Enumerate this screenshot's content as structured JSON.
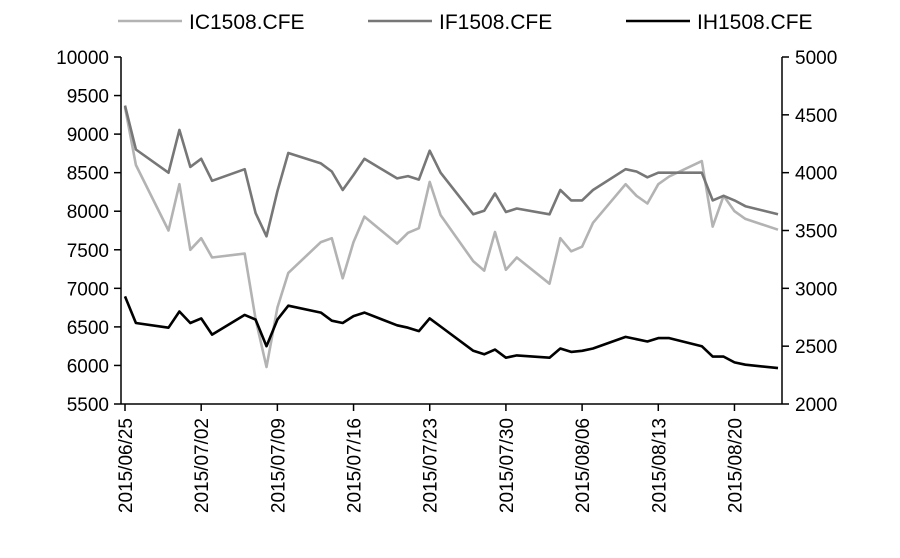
{
  "chart_data": {
    "type": "line",
    "title": "",
    "xlabel": "",
    "ylabel_left": "",
    "ylabel_right": "",
    "legend_position": "top",
    "grid": false,
    "x_dates": [
      "2015/06/25",
      "2015/06/26",
      "2015/06/29",
      "2015/06/30",
      "2015/07/01",
      "2015/07/02",
      "2015/07/03",
      "2015/07/06",
      "2015/07/07",
      "2015/07/08",
      "2015/07/09",
      "2015/07/10",
      "2015/07/13",
      "2015/07/14",
      "2015/07/15",
      "2015/07/16",
      "2015/07/17",
      "2015/07/20",
      "2015/07/21",
      "2015/07/22",
      "2015/07/23",
      "2015/07/24",
      "2015/07/27",
      "2015/07/28",
      "2015/07/29",
      "2015/07/30",
      "2015/07/31",
      "2015/08/03",
      "2015/08/04",
      "2015/08/05",
      "2015/08/06",
      "2015/08/07",
      "2015/08/10",
      "2015/08/11",
      "2015/08/12",
      "2015/08/13",
      "2015/08/14",
      "2015/08/17",
      "2015/08/18",
      "2015/08/19",
      "2015/08/20",
      "2015/08/21",
      "2015/08/24"
    ],
    "x_ticks": [
      "2015/06/25",
      "2015/07/02",
      "2015/07/09",
      "2015/07/16",
      "2015/07/23",
      "2015/07/30",
      "2015/08/06",
      "2015/08/13",
      "2015/08/20"
    ],
    "left_axis": {
      "ylim": [
        5500,
        10000
      ],
      "ticks": [
        "5500",
        "6000",
        "6500",
        "7000",
        "7500",
        "8000",
        "8500",
        "9000",
        "9500",
        "10000"
      ]
    },
    "right_axis": {
      "ylim": [
        2000,
        5000
      ],
      "ticks": [
        "2000",
        "2500",
        "3000",
        "3500",
        "4000",
        "4500",
        "5000"
      ]
    },
    "series": [
      {
        "name": "IC1508.CFE",
        "axis": "left",
        "color": "#b3b3b3",
        "points": [
          [
            "2015/06/25",
            9350
          ],
          [
            "2015/06/26",
            8600
          ],
          [
            "2015/06/29",
            7750
          ],
          [
            "2015/06/30",
            8350
          ],
          [
            "2015/07/01",
            7500
          ],
          [
            "2015/07/02",
            7650
          ],
          [
            "2015/07/03",
            7400
          ],
          [
            "2015/07/06",
            7450
          ],
          [
            "2015/07/07",
            6600
          ],
          [
            "2015/07/08",
            5980
          ],
          [
            "2015/07/09",
            6750
          ],
          [
            "2015/07/10",
            7200
          ],
          [
            "2015/07/13",
            7600
          ],
          [
            "2015/07/14",
            7650
          ],
          [
            "2015/07/15",
            7130
          ],
          [
            "2015/07/16",
            7600
          ],
          [
            "2015/07/17",
            7930
          ],
          [
            "2015/07/20",
            7580
          ],
          [
            "2015/07/21",
            7720
          ],
          [
            "2015/07/22",
            7780
          ],
          [
            "2015/07/23",
            8380
          ],
          [
            "2015/07/24",
            7950
          ],
          [
            "2015/07/27",
            7350
          ],
          [
            "2015/07/28",
            7230
          ],
          [
            "2015/07/29",
            7730
          ],
          [
            "2015/07/30",
            7240
          ],
          [
            "2015/07/31",
            7400
          ],
          [
            "2015/08/03",
            7060
          ],
          [
            "2015/08/04",
            7650
          ],
          [
            "2015/08/05",
            7480
          ],
          [
            "2015/08/06",
            7540
          ],
          [
            "2015/08/07",
            7850
          ],
          [
            "2015/08/10",
            8350
          ],
          [
            "2015/08/11",
            8200
          ],
          [
            "2015/08/12",
            8100
          ],
          [
            "2015/08/13",
            8350
          ],
          [
            "2015/08/14",
            8450
          ],
          [
            "2015/08/17",
            8650
          ],
          [
            "2015/08/18",
            7800
          ],
          [
            "2015/08/19",
            8200
          ],
          [
            "2015/08/20",
            8000
          ],
          [
            "2015/08/21",
            7900
          ],
          [
            "2015/08/24",
            7760
          ]
        ]
      },
      {
        "name": "IF1508.CFE",
        "axis": "right",
        "color": "#777777",
        "points": [
          [
            "2015/06/25",
            4580
          ],
          [
            "2015/06/26",
            4200
          ],
          [
            "2015/06/29",
            4000
          ],
          [
            "2015/06/30",
            4370
          ],
          [
            "2015/07/01",
            4050
          ],
          [
            "2015/07/02",
            4120
          ],
          [
            "2015/07/03",
            3930
          ],
          [
            "2015/07/06",
            4030
          ],
          [
            "2015/07/07",
            3650
          ],
          [
            "2015/07/08",
            3450
          ],
          [
            "2015/07/09",
            3840
          ],
          [
            "2015/07/10",
            4170
          ],
          [
            "2015/07/13",
            4080
          ],
          [
            "2015/07/14",
            4010
          ],
          [
            "2015/07/15",
            3850
          ],
          [
            "2015/07/16",
            3980
          ],
          [
            "2015/07/17",
            4120
          ],
          [
            "2015/07/20",
            3950
          ],
          [
            "2015/07/21",
            3970
          ],
          [
            "2015/07/22",
            3940
          ],
          [
            "2015/07/23",
            4190
          ],
          [
            "2015/07/24",
            4000
          ],
          [
            "2015/07/27",
            3640
          ],
          [
            "2015/07/28",
            3670
          ],
          [
            "2015/07/29",
            3820
          ],
          [
            "2015/07/30",
            3660
          ],
          [
            "2015/07/31",
            3690
          ],
          [
            "2015/08/03",
            3640
          ],
          [
            "2015/08/04",
            3850
          ],
          [
            "2015/08/05",
            3760
          ],
          [
            "2015/08/06",
            3760
          ],
          [
            "2015/08/07",
            3850
          ],
          [
            "2015/08/10",
            4030
          ],
          [
            "2015/08/11",
            4010
          ],
          [
            "2015/08/12",
            3960
          ],
          [
            "2015/08/13",
            4000
          ],
          [
            "2015/08/14",
            4000
          ],
          [
            "2015/08/17",
            4000
          ],
          [
            "2015/08/18",
            3760
          ],
          [
            "2015/08/19",
            3800
          ],
          [
            "2015/08/20",
            3760
          ],
          [
            "2015/08/21",
            3710
          ],
          [
            "2015/08/24",
            3640
          ]
        ]
      },
      {
        "name": "IH1508.CFE",
        "axis": "right",
        "color": "#000000",
        "points": [
          [
            "2015/06/25",
            2930
          ],
          [
            "2015/06/26",
            2700
          ],
          [
            "2015/06/29",
            2660
          ],
          [
            "2015/06/30",
            2800
          ],
          [
            "2015/07/01",
            2700
          ],
          [
            "2015/07/02",
            2740
          ],
          [
            "2015/07/03",
            2600
          ],
          [
            "2015/07/06",
            2770
          ],
          [
            "2015/07/07",
            2730
          ],
          [
            "2015/07/08",
            2500
          ],
          [
            "2015/07/09",
            2730
          ],
          [
            "2015/07/10",
            2850
          ],
          [
            "2015/07/13",
            2790
          ],
          [
            "2015/07/14",
            2720
          ],
          [
            "2015/07/15",
            2700
          ],
          [
            "2015/07/16",
            2760
          ],
          [
            "2015/07/17",
            2790
          ],
          [
            "2015/07/20",
            2680
          ],
          [
            "2015/07/21",
            2660
          ],
          [
            "2015/07/22",
            2630
          ],
          [
            "2015/07/23",
            2740
          ],
          [
            "2015/07/24",
            2670
          ],
          [
            "2015/07/27",
            2460
          ],
          [
            "2015/07/28",
            2430
          ],
          [
            "2015/07/29",
            2470
          ],
          [
            "2015/07/30",
            2400
          ],
          [
            "2015/07/31",
            2420
          ],
          [
            "2015/08/03",
            2400
          ],
          [
            "2015/08/04",
            2480
          ],
          [
            "2015/08/05",
            2450
          ],
          [
            "2015/08/06",
            2460
          ],
          [
            "2015/08/07",
            2480
          ],
          [
            "2015/08/10",
            2580
          ],
          [
            "2015/08/11",
            2560
          ],
          [
            "2015/08/12",
            2540
          ],
          [
            "2015/08/13",
            2570
          ],
          [
            "2015/08/14",
            2570
          ],
          [
            "2015/08/17",
            2500
          ],
          [
            "2015/08/18",
            2410
          ],
          [
            "2015/08/19",
            2410
          ],
          [
            "2015/08/20",
            2360
          ],
          [
            "2015/08/21",
            2340
          ],
          [
            "2015/08/24",
            2310
          ]
        ]
      }
    ]
  }
}
